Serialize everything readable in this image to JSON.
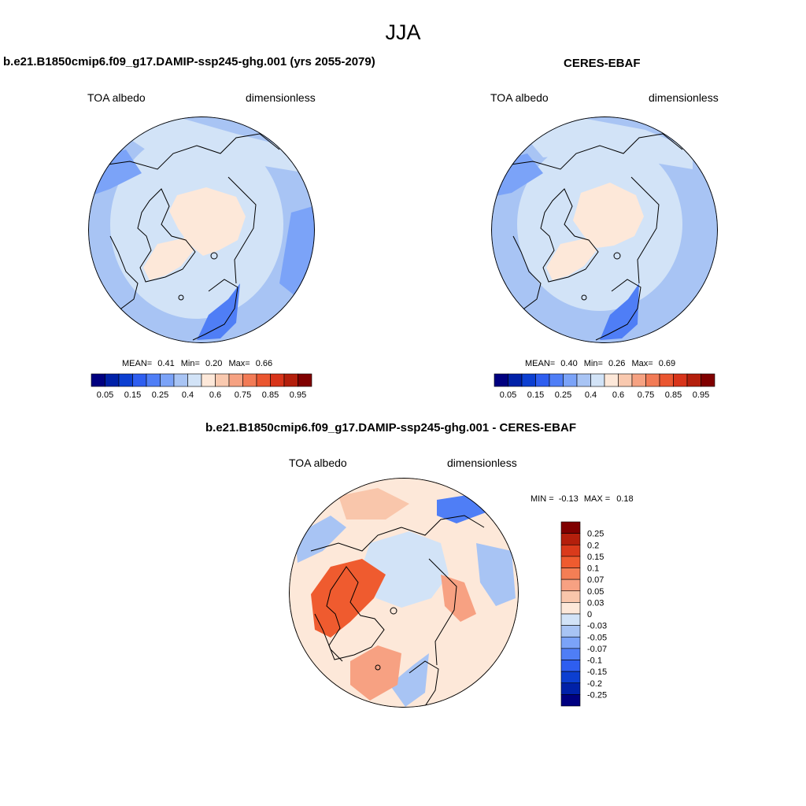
{
  "figure": {
    "title": "JJA"
  },
  "panels": {
    "model": {
      "title": "b.e21.B1850cmip6.f09_g17.DAMIP-ssp245-ghg.001 (yrs 2055-2079)",
      "variable": "TOA albedo",
      "units": "dimensionless",
      "stats": {
        "mean_label": "MEAN=",
        "mean": "0.41",
        "min_label": "Min=",
        "min": "0.20",
        "max_label": "Max=",
        "max": "0.66"
      }
    },
    "obs": {
      "title": "CERES-EBAF",
      "variable": "TOA albedo",
      "units": "dimensionless",
      "stats": {
        "mean_label": "MEAN=",
        "mean": "0.40",
        "min_label": "Min=",
        "min": "0.26",
        "max_label": "Max=",
        "max": "0.69"
      }
    },
    "diff": {
      "title": "b.e21.B1850cmip6.f09_g17.DAMIP-ssp245-ghg.001 - CERES-EBAF",
      "variable": "TOA albedo",
      "units": "dimensionless",
      "stats": {
        "min_label": "MIN =",
        "min": "-0.13",
        "max_label": "MAX =",
        "max": "0.18"
      }
    }
  },
  "colorbar_abs": {
    "colors": [
      "#000080",
      "#0021a8",
      "#0c3fd1",
      "#2e5ef0",
      "#4f7ef6",
      "#7ba3f8",
      "#a8c4f4",
      "#d2e3f7",
      "#fde8d9",
      "#f9c9af",
      "#f6a282",
      "#f27b56",
      "#ea5630",
      "#d8341a",
      "#b41f0c",
      "#800000"
    ],
    "labels": [
      "0.05",
      "0.15",
      "0.25",
      "0.4",
      "0.6",
      "0.75",
      "0.85",
      "0.95"
    ]
  },
  "colorbar_diff": {
    "colors": [
      "#800000",
      "#b41f0c",
      "#da3a1b",
      "#ef5b2f",
      "#f47e55",
      "#f7a182",
      "#f9c6ab",
      "#fde8d9",
      "#d2e3f7",
      "#a8c4f4",
      "#7ba3f8",
      "#4f7ef6",
      "#2e5ef0",
      "#0c3fd1",
      "#0021a8",
      "#000080"
    ],
    "labels": [
      "0.25",
      "0.2",
      "0.15",
      "0.1",
      "0.07",
      "0.05",
      "0.03",
      "0",
      "-0.03",
      "-0.05",
      "-0.07",
      "-0.1",
      "-0.15",
      "-0.2",
      "-0.25"
    ]
  },
  "map_colors": {
    "ocean_low": "#a8c4f4",
    "ocean_mid": "#d2e3f7",
    "ice_high": "#fde8d9",
    "ocean_dark": "#7ba3f8",
    "ocean_deep": "#4f7ef6",
    "diff_zero": "#fde8d9",
    "diff_pos1": "#f9c6ab",
    "diff_pos2": "#f7a182",
    "diff_pos3": "#ef5b2f",
    "diff_neg1": "#d2e3f7",
    "diff_neg2": "#a8c4f4",
    "diff_neg3": "#4f7ef6"
  }
}
